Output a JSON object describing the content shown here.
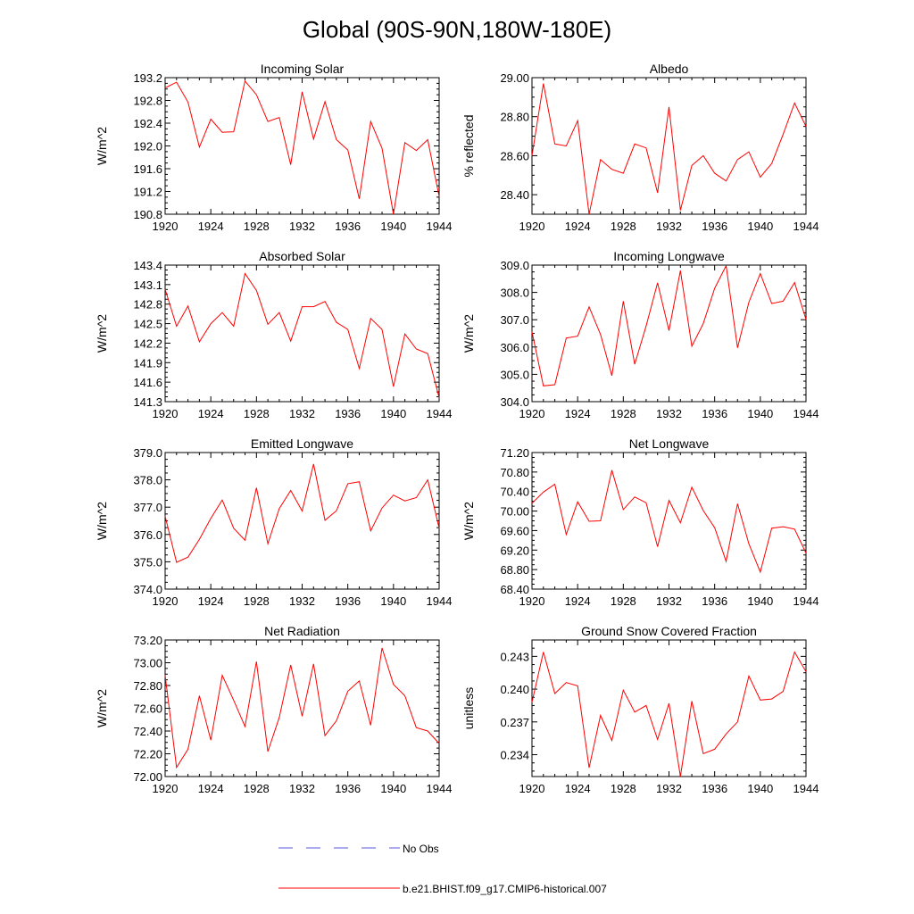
{
  "title": "Global (90S-90N,180W-180E)",
  "legend": {
    "obs_label": "No Obs",
    "obs_color": "#5a5adc",
    "model_label": "b.e21.BHIST.f09_g17.CMIP6-historical.007",
    "model_color": "#ff0000"
  },
  "chart_data": [
    {
      "type": "line",
      "title": "Incoming Solar",
      "ylabel": "W/m^2",
      "xlabel": "",
      "xlim": [
        1920,
        1944
      ],
      "xticks": [
        1920,
        1924,
        1928,
        1932,
        1936,
        1940,
        1944
      ],
      "ylim": [
        190.8,
        193.2
      ],
      "yticks": [
        "190.8",
        "191.2",
        "191.6",
        "192.0",
        "192.4",
        "192.8",
        "193.2"
      ],
      "x": [
        1920,
        1921,
        1922,
        1923,
        1924,
        1925,
        1926,
        1927,
        1928,
        1929,
        1930,
        1931,
        1932,
        1933,
        1934,
        1935,
        1936,
        1937,
        1938,
        1939,
        1940,
        1941,
        1942,
        1943,
        1944
      ],
      "values": [
        193.02,
        193.12,
        192.77,
        191.98,
        192.47,
        192.24,
        192.25,
        193.14,
        192.9,
        192.43,
        192.5,
        191.67,
        192.95,
        192.12,
        192.78,
        192.11,
        191.93,
        191.07,
        192.43,
        191.96,
        190.8,
        192.06,
        191.92,
        192.11,
        191.11
      ]
    },
    {
      "type": "line",
      "title": "Albedo",
      "ylabel": "% reflected",
      "xlabel": "",
      "xlim": [
        1920,
        1944
      ],
      "xticks": [
        1920,
        1924,
        1928,
        1932,
        1936,
        1940,
        1944
      ],
      "ylim": [
        28.3,
        29.0
      ],
      "yticks": [
        "28.40",
        "28.60",
        "28.80",
        "29.00"
      ],
      "x": [
        1920,
        1921,
        1922,
        1923,
        1924,
        1925,
        1926,
        1927,
        1928,
        1929,
        1930,
        1931,
        1932,
        1933,
        1934,
        1935,
        1936,
        1937,
        1938,
        1939,
        1940,
        1941,
        1942,
        1943,
        1944
      ],
      "values": [
        28.6,
        28.97,
        28.66,
        28.65,
        28.78,
        28.3,
        28.58,
        28.53,
        28.51,
        28.66,
        28.64,
        28.41,
        28.85,
        28.32,
        28.55,
        28.6,
        28.51,
        28.47,
        28.58,
        28.62,
        28.49,
        28.56,
        28.71,
        28.87,
        28.75
      ]
    },
    {
      "type": "line",
      "title": "Absorbed Solar",
      "ylabel": "W/m^2",
      "xlabel": "",
      "xlim": [
        1920,
        1944
      ],
      "xticks": [
        1920,
        1924,
        1928,
        1932,
        1936,
        1940,
        1944
      ],
      "ylim": [
        141.3,
        143.4
      ],
      "yticks": [
        "141.3",
        "141.6",
        "141.9",
        "142.2",
        "142.5",
        "142.8",
        "143.1",
        "143.4"
      ],
      "x": [
        1920,
        1921,
        1922,
        1923,
        1924,
        1925,
        1926,
        1927,
        1928,
        1929,
        1930,
        1931,
        1932,
        1933,
        1934,
        1935,
        1936,
        1937,
        1938,
        1939,
        1940,
        1941,
        1942,
        1943,
        1944
      ],
      "values": [
        143.03,
        142.46,
        142.77,
        142.22,
        142.5,
        142.67,
        142.46,
        143.27,
        143.01,
        142.49,
        142.67,
        142.23,
        142.76,
        142.76,
        142.84,
        142.52,
        142.41,
        141.81,
        142.58,
        142.41,
        141.53,
        142.34,
        142.11,
        142.04,
        141.36
      ]
    },
    {
      "type": "line",
      "title": "Incoming Longwave",
      "ylabel": "W/m^2",
      "xlabel": "",
      "xlim": [
        1920,
        1944
      ],
      "xticks": [
        1920,
        1924,
        1928,
        1932,
        1936,
        1940,
        1944
      ],
      "ylim": [
        304.0,
        309.0
      ],
      "yticks": [
        "304.0",
        "305.0",
        "306.0",
        "307.0",
        "308.0",
        "309.0"
      ],
      "x": [
        1920,
        1921,
        1922,
        1923,
        1924,
        1925,
        1926,
        1927,
        1928,
        1929,
        1930,
        1931,
        1932,
        1933,
        1934,
        1935,
        1936,
        1937,
        1938,
        1939,
        1940,
        1941,
        1942,
        1943,
        1944
      ],
      "values": [
        306.56,
        304.58,
        304.62,
        306.33,
        306.4,
        307.47,
        306.46,
        304.95,
        307.68,
        305.37,
        306.77,
        308.35,
        306.6,
        308.8,
        306.03,
        306.86,
        308.15,
        308.98,
        305.97,
        307.64,
        308.69,
        307.59,
        307.68,
        308.36,
        307.01
      ]
    },
    {
      "type": "line",
      "title": "Emitted Longwave",
      "ylabel": "W/m^2",
      "xlabel": "",
      "xlim": [
        1920,
        1944
      ],
      "xticks": [
        1920,
        1924,
        1928,
        1932,
        1936,
        1940,
        1944
      ],
      "ylim": [
        374.0,
        379.0
      ],
      "yticks": [
        "374.0",
        "375.0",
        "376.0",
        "377.0",
        "378.0",
        "379.0"
      ],
      "x": [
        1920,
        1921,
        1922,
        1923,
        1924,
        1925,
        1926,
        1927,
        1928,
        1929,
        1930,
        1931,
        1932,
        1933,
        1934,
        1935,
        1936,
        1937,
        1938,
        1939,
        1940,
        1941,
        1942,
        1943,
        1944
      ],
      "values": [
        376.67,
        374.98,
        375.17,
        375.82,
        376.59,
        377.26,
        376.23,
        375.79,
        377.71,
        375.66,
        376.95,
        377.61,
        376.86,
        378.58,
        376.52,
        376.87,
        377.86,
        377.93,
        376.13,
        376.97,
        377.44,
        377.23,
        377.35,
        378.0,
        376.23
      ]
    },
    {
      "type": "line",
      "title": "Net Longwave",
      "ylabel": "W/m^2",
      "xlabel": "",
      "xlim": [
        1920,
        1944
      ],
      "xticks": [
        1920,
        1924,
        1928,
        1932,
        1936,
        1940,
        1944
      ],
      "ylim": [
        68.4,
        71.2
      ],
      "yticks": [
        "68.40",
        "68.80",
        "69.20",
        "69.60",
        "70.00",
        "70.40",
        "70.80",
        "71.20"
      ],
      "x": [
        1920,
        1921,
        1922,
        1923,
        1924,
        1925,
        1926,
        1927,
        1928,
        1929,
        1930,
        1931,
        1932,
        1933,
        1934,
        1935,
        1936,
        1937,
        1938,
        1939,
        1940,
        1941,
        1942,
        1943,
        1944
      ],
      "values": [
        70.16,
        70.39,
        70.55,
        69.52,
        70.19,
        69.79,
        69.8,
        70.84,
        70.03,
        70.29,
        70.17,
        69.27,
        70.22,
        69.76,
        70.49,
        70.01,
        69.66,
        68.97,
        70.15,
        69.33,
        68.75,
        69.65,
        69.68,
        69.63,
        69.14
      ]
    },
    {
      "type": "line",
      "title": "Net Radiation",
      "ylabel": "W/m^2",
      "xlabel": "",
      "xlim": [
        1920,
        1944
      ],
      "xticks": [
        1920,
        1924,
        1928,
        1932,
        1936,
        1940,
        1944
      ],
      "ylim": [
        72.0,
        73.2
      ],
      "yticks": [
        "72.00",
        "72.20",
        "72.40",
        "72.60",
        "72.80",
        "73.00",
        "73.20"
      ],
      "x": [
        1920,
        1921,
        1922,
        1923,
        1924,
        1925,
        1926,
        1927,
        1928,
        1929,
        1930,
        1931,
        1932,
        1933,
        1934,
        1935,
        1936,
        1937,
        1938,
        1939,
        1940,
        1941,
        1942,
        1943,
        1944
      ],
      "values": [
        72.89,
        72.08,
        72.24,
        72.71,
        72.32,
        72.89,
        72.67,
        72.44,
        73.01,
        72.22,
        72.52,
        72.98,
        72.53,
        72.99,
        72.36,
        72.49,
        72.75,
        72.84,
        72.45,
        73.13,
        72.81,
        72.71,
        72.43,
        72.4,
        72.29
      ]
    },
    {
      "type": "line",
      "title": "Ground Snow Covered Fraction",
      "ylabel": "unitless",
      "xlabel": "",
      "xlim": [
        1920,
        1944
      ],
      "xticks": [
        1920,
        1924,
        1928,
        1932,
        1936,
        1940,
        1944
      ],
      "ylim": [
        0.232,
        0.2445
      ],
      "yticks": [
        "0.234",
        "0.237",
        "0.240",
        "0.243"
      ],
      "x": [
        1920,
        1921,
        1922,
        1923,
        1924,
        1925,
        1926,
        1927,
        1928,
        1929,
        1930,
        1931,
        1932,
        1933,
        1934,
        1935,
        1936,
        1937,
        1938,
        1939,
        1940,
        1941,
        1942,
        1943,
        1944
      ],
      "values": [
        0.2388,
        0.2434,
        0.2396,
        0.2406,
        0.2403,
        0.2328,
        0.2376,
        0.2353,
        0.2399,
        0.2379,
        0.2385,
        0.2354,
        0.2387,
        0.232,
        0.2389,
        0.2341,
        0.2345,
        0.2359,
        0.237,
        0.2412,
        0.239,
        0.2391,
        0.2398,
        0.2434,
        0.2416
      ]
    }
  ]
}
